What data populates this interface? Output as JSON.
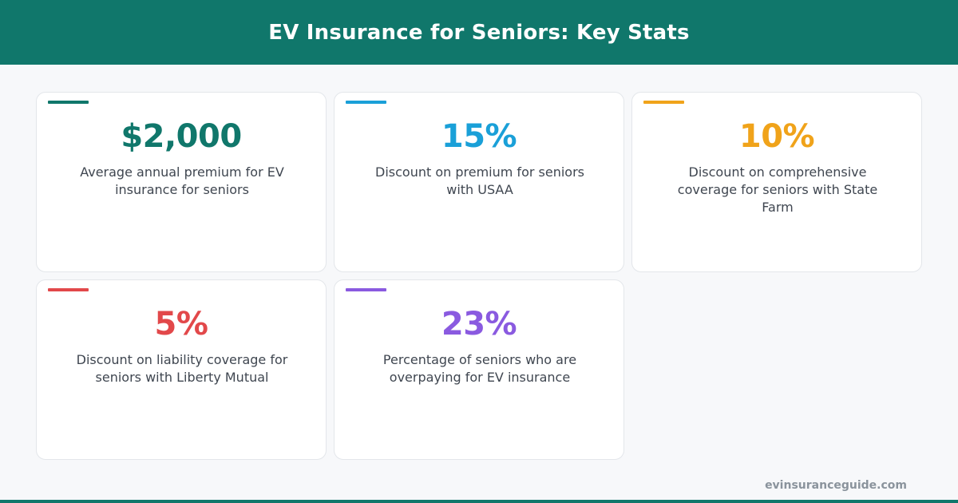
{
  "title": "EV Insurance for Seniors: Key Stats",
  "stats": [
    {
      "value": "$2,000",
      "description": "Average annual premium for EV insurance for seniors",
      "color": "#10776b"
    },
    {
      "value": "15%",
      "description": "Discount on premium for seniors with USAA",
      "color": "#1aa0d8"
    },
    {
      "value": "10%",
      "description": "Discount on comprehensive coverage for seniors with State Farm",
      "color": "#f0a31a"
    },
    {
      "value": "5%",
      "description": "Discount on liability coverage for seniors with Liberty Mutual",
      "color": "#e2484a"
    },
    {
      "value": "23%",
      "description": "Percentage of seniors who are overpaying for EV insurance",
      "color": "#8a5ae0"
    }
  ],
  "footer": {
    "site": "evinsuranceguide.com"
  },
  "colors": {
    "header_bg": "#10776b",
    "page_bg": "#f7f8fa",
    "card_bg": "#ffffff",
    "text": "#3f4650"
  }
}
